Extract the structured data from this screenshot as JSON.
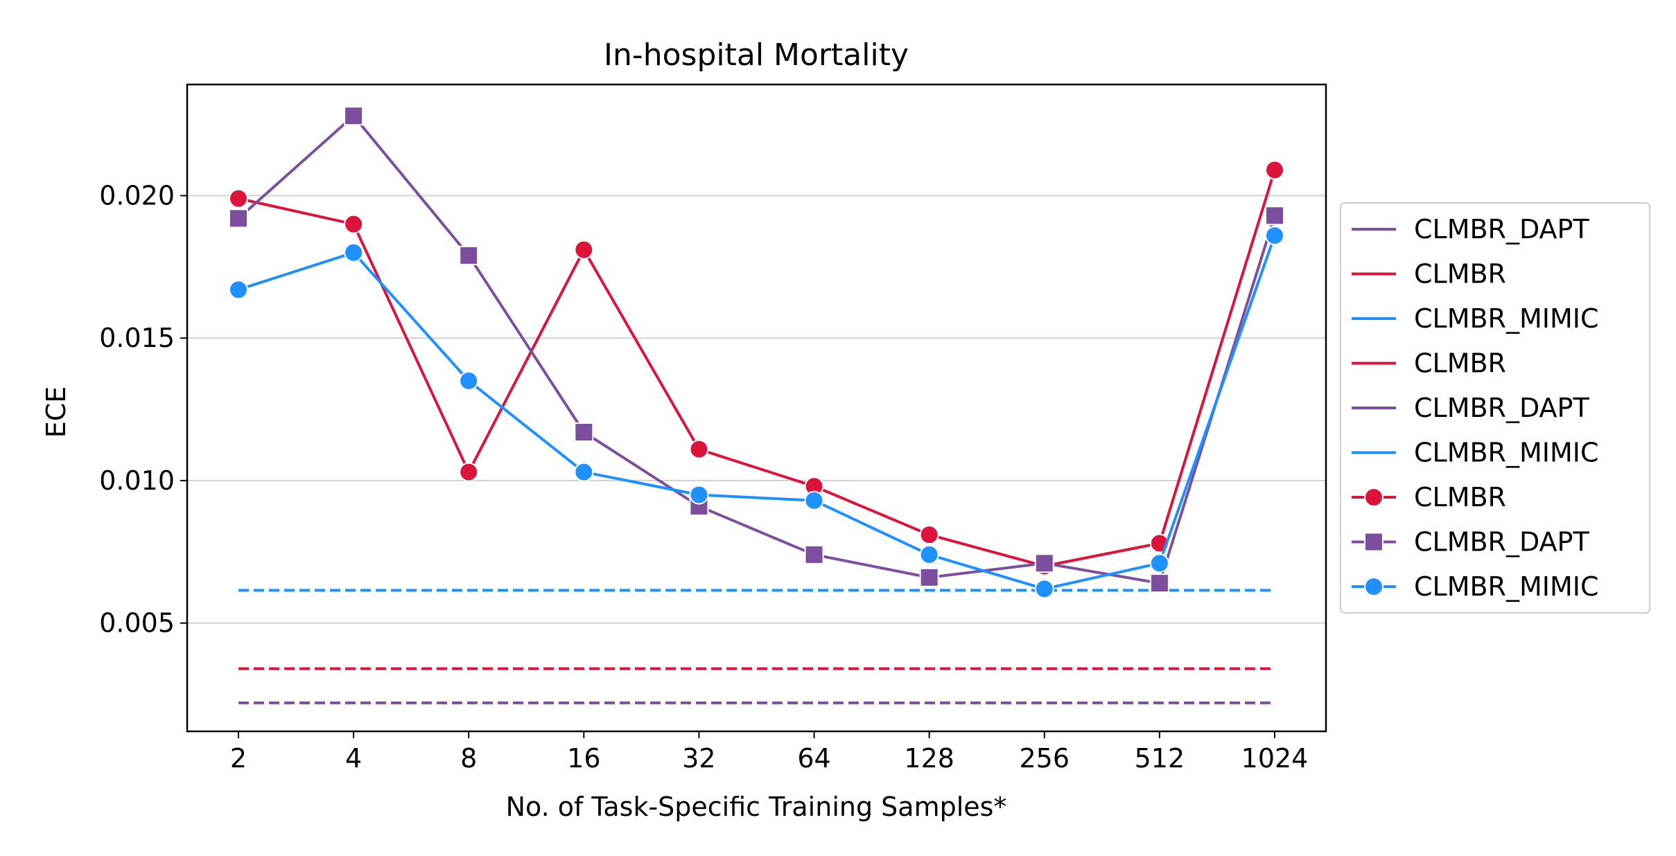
{
  "chart_data": {
    "type": "line",
    "title": "In-hospital Mortality",
    "xlabel": "No. of Task-Specific Training Samples*",
    "ylabel": "ECE",
    "categories": [
      "2",
      "4",
      "8",
      "16",
      "32",
      "64",
      "128",
      "256",
      "512",
      "1024"
    ],
    "ylim": [
      0.0012,
      0.0239
    ],
    "yticks": [
      0.005,
      0.01,
      0.015,
      0.02
    ],
    "ytick_labels": [
      "0.005",
      "0.010",
      "0.015",
      "0.020"
    ],
    "grid": "horizontal",
    "legend_position": "center-right outside",
    "series": [
      {
        "name": "CLMBR",
        "color": "#dc143c",
        "marker": "circle",
        "values": [
          0.0199,
          0.019,
          0.0103,
          0.0181,
          0.0111,
          0.0098,
          0.0081,
          0.007,
          0.0078,
          0.0209
        ]
      },
      {
        "name": "CLMBR_DAPT",
        "color": "#7b4f9e",
        "marker": "square",
        "values": [
          0.0192,
          0.0228,
          0.0179,
          0.0117,
          0.0091,
          0.0074,
          0.0066,
          0.0071,
          0.0064,
          0.0193
        ]
      },
      {
        "name": "CLMBR_MIMIC",
        "color": "#1e90ff",
        "marker": "circle",
        "values": [
          0.0167,
          0.018,
          0.0135,
          0.0103,
          0.0095,
          0.0093,
          0.0074,
          0.0062,
          0.0071,
          0.0186
        ]
      }
    ],
    "baselines": [
      {
        "name": "CLMBR_MIMIC",
        "color": "#1e90ff",
        "value": 0.00615
      },
      {
        "name": "CLMBR",
        "color": "#dc143c",
        "value": 0.0034
      },
      {
        "name": "CLMBR_DAPT",
        "color": "#7b4f9e",
        "value": 0.0022
      }
    ],
    "legend": [
      {
        "label": "CLMBR_DAPT",
        "color": "#7b4f9e",
        "marker": "none"
      },
      {
        "label": "CLMBR",
        "color": "#dc143c",
        "marker": "none"
      },
      {
        "label": "CLMBR_MIMIC",
        "color": "#1e90ff",
        "marker": "none"
      },
      {
        "label": "CLMBR",
        "color": "#dc143c",
        "marker": "none"
      },
      {
        "label": "CLMBR_DAPT",
        "color": "#7b4f9e",
        "marker": "none"
      },
      {
        "label": "CLMBR_MIMIC",
        "color": "#1e90ff",
        "marker": "none"
      },
      {
        "label": "CLMBR",
        "color": "#dc143c",
        "marker": "circle"
      },
      {
        "label": "CLMBR_DAPT",
        "color": "#7b4f9e",
        "marker": "square"
      },
      {
        "label": "CLMBR_MIMIC",
        "color": "#1e90ff",
        "marker": "circle"
      }
    ]
  }
}
